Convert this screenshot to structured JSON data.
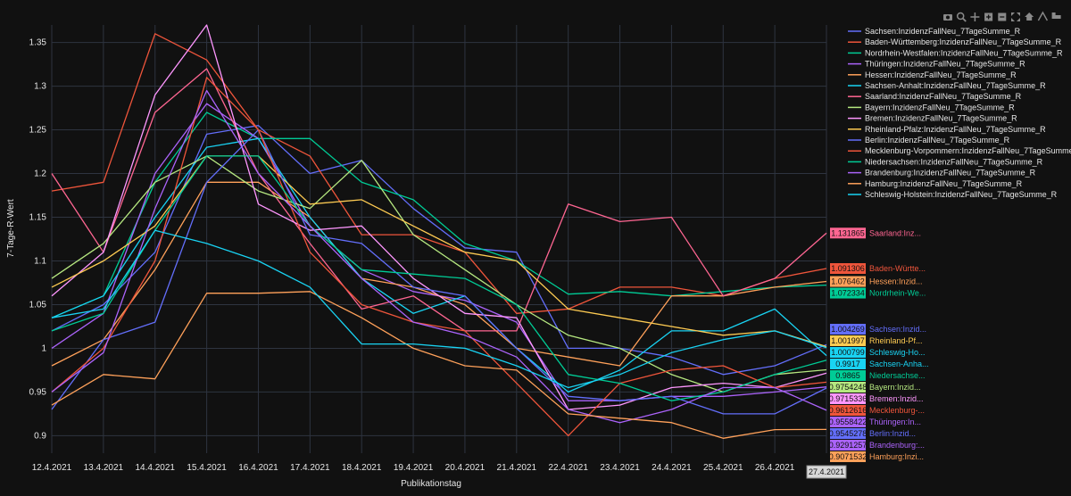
{
  "modebar": {
    "icons": [
      "camera-icon",
      "zoom-icon",
      "pan-icon",
      "zoom-in-icon",
      "zoom-out-icon",
      "autoscale-icon",
      "home-icon",
      "spike-icon",
      "compare-icon"
    ]
  },
  "chart_data": {
    "type": "line",
    "xlabel": "Publikationstag",
    "ylabel": "7-Tage-R-Wert",
    "ylim": [
      0.88,
      1.37
    ],
    "yticks": [
      0.9,
      0.95,
      1,
      1.05,
      1.1,
      1.15,
      1.2,
      1.25,
      1.3,
      1.35
    ],
    "ytick_labels": [
      "0.9",
      "0.95",
      "1",
      "1.05",
      "1.1",
      "1.15",
      "1.2",
      "1.25",
      "1.3",
      "1.35"
    ],
    "x": [
      "12.4.2021",
      "13.4.2021",
      "14.4.2021",
      "15.4.2021",
      "16.4.2021",
      "17.4.2021",
      "18.4.2021",
      "19.4.2021",
      "20.4.2021",
      "21.4.2021",
      "22.4.2021",
      "23.4.2021",
      "24.4.2021",
      "25.4.2021",
      "26.4.2021",
      "27.4.2021"
    ],
    "hover_x_label": "27.4.2021",
    "grid": true,
    "legend_position": "top-right",
    "series": [
      {
        "name": "Sachsen:InzidenzFallNeu_7TageSumme_R",
        "color": "#636efa",
        "values": [
          1.02,
          1.05,
          1.11,
          1.245,
          1.255,
          1.2,
          1.215,
          1.16,
          1.115,
          1.11,
          1.0,
          1.0,
          0.99,
          0.97,
          0.98,
          1.004269
        ],
        "hover_value": "1.004269",
        "hover_name": "Sachsen:Inzid..."
      },
      {
        "name": "Baden-Württemberg:InzidenzFallNeu_7TageSumme_R",
        "color": "#ef553b",
        "values": [
          1.18,
          1.19,
          1.36,
          1.33,
          1.25,
          1.22,
          1.13,
          1.13,
          1.11,
          1.04,
          1.045,
          1.07,
          1.07,
          1.06,
          1.08,
          1.091306
        ],
        "hover_value": "1.091306",
        "hover_name": "Baden-Württe..."
      },
      {
        "name": "Nordrhein-Westfalen:InzidenzFallNeu_7TageSumme_R",
        "color": "#00cc96",
        "values": [
          1.035,
          1.06,
          1.19,
          1.27,
          1.24,
          1.24,
          1.19,
          1.17,
          1.12,
          1.1,
          1.062,
          1.065,
          1.06,
          1.065,
          1.07,
          1.072334
        ],
        "hover_value": "1.072334",
        "hover_name": "Nordrhein-We..."
      },
      {
        "name": "Thüringen:InzidenzFallNeu_7TageSumme_R",
        "color": "#ab63fa",
        "values": [
          1.0,
          1.04,
          1.2,
          1.28,
          1.24,
          1.14,
          1.09,
          1.065,
          1.055,
          1.03,
          0.94,
          0.94,
          0.945,
          0.945,
          0.95,
          0.9558422
        ],
        "hover_value": "0.9558422",
        "hover_name": "Thüringen:In..."
      },
      {
        "name": "Hessen:InzidenzFallNeu_7TageSumme_R",
        "color": "#ffa15a",
        "values": [
          0.98,
          1.01,
          1.09,
          1.19,
          1.19,
          1.15,
          1.08,
          1.07,
          1.05,
          1.0,
          0.99,
          0.98,
          1.06,
          1.06,
          1.07,
          1.076462
        ],
        "hover_value": "1.076462",
        "hover_name": "Hessen:Inzid..."
      },
      {
        "name": "Sachsen-Anhalt:InzidenzFallNeu_7TageSumme_R",
        "color": "#19d3f3",
        "values": [
          1.035,
          1.06,
          1.15,
          1.23,
          1.24,
          1.15,
          1.08,
          1.04,
          1.06,
          1.0,
          0.95,
          0.975,
          1.02,
          1.02,
          1.045,
          0.9917
        ],
        "hover_value": "0.9917",
        "hover_name": "Sachsen-Anha..."
      },
      {
        "name": "Saarland:InzidenzFallNeu_7TageSumme_R",
        "color": "#ff6692",
        "values": [
          1.2,
          1.11,
          1.27,
          1.32,
          1.2,
          1.12,
          1.045,
          1.06,
          1.02,
          1.02,
          1.165,
          1.145,
          1.15,
          1.06,
          1.08,
          1.131865
        ],
        "hover_value": "1.131865",
        "hover_name": "Saarland:Inz..."
      },
      {
        "name": "Bayern:InzidenzFallNeu_7TageSumme_R",
        "color": "#b6e880",
        "values": [
          1.08,
          1.12,
          1.19,
          1.22,
          1.18,
          1.16,
          1.215,
          1.13,
          1.09,
          1.05,
          1.015,
          1.0,
          0.97,
          0.95,
          0.97,
          0.9754248
        ],
        "hover_value": "0.9754248",
        "hover_name": "Bayern:Inzid..."
      },
      {
        "name": "Bremen:InzidenzFallNeu_7TageSumme_R",
        "color": "#ff97ff",
        "values": [
          1.06,
          1.11,
          1.29,
          1.37,
          1.165,
          1.135,
          1.14,
          1.08,
          1.04,
          1.035,
          0.93,
          0.935,
          0.955,
          0.96,
          0.955,
          0.9715336
        ],
        "hover_value": "0.9715336",
        "hover_name": "Bremen:Inzid..."
      },
      {
        "name": "Rheinland-Pfalz:InzidenzFallNeu_7TageSumme_R",
        "color": "#fecb52",
        "values": [
          1.07,
          1.1,
          1.14,
          1.22,
          1.22,
          1.165,
          1.17,
          1.14,
          1.11,
          1.1,
          1.045,
          1.035,
          1.025,
          1.015,
          1.02,
          1.001997
        ],
        "hover_value": "1.001997",
        "hover_name": "Rheinland-Pf..."
      },
      {
        "name": "Berlin:InzidenzFallNeu_7TageSumme_R",
        "color": "#636efa",
        "values": [
          0.93,
          1.01,
          1.03,
          1.19,
          1.25,
          1.13,
          1.12,
          1.07,
          1.06,
          1.0,
          0.945,
          0.94,
          0.945,
          0.925,
          0.925,
          0.9545278
        ],
        "hover_value": "0.9545278",
        "hover_name": "Berlin:Inzid..."
      },
      {
        "name": "Mecklenburg-Vorpommern:InzidenzFallNeu_7TageSumme_R",
        "color": "#ef553b",
        "values": [
          0.95,
          1.0,
          1.1,
          1.31,
          1.25,
          1.11,
          1.05,
          1.03,
          1.02,
          0.96,
          0.9,
          0.96,
          0.975,
          0.98,
          0.955,
          0.9612616
        ],
        "hover_value": "0.9612616",
        "hover_name": "Mecklenburg-..."
      },
      {
        "name": "Niedersachsen:InzidenzFallNeu_7TageSumme_R",
        "color": "#00cc96",
        "values": [
          1.02,
          1.04,
          1.135,
          1.22,
          1.22,
          1.14,
          1.09,
          1.085,
          1.08,
          1.05,
          0.97,
          0.96,
          0.94,
          0.95,
          0.97,
          0.9865
        ],
        "hover_value": "0.9865",
        "hover_name": "Niedersachse..."
      },
      {
        "name": "Brandenburg:InzidenzFallNeu_7TageSumme_R",
        "color": "#ab63fa",
        "values": [
          0.95,
          0.995,
          1.16,
          1.295,
          1.2,
          1.14,
          1.08,
          1.03,
          1.015,
          0.99,
          0.93,
          0.915,
          0.93,
          0.955,
          0.955,
          0.9291257
        ],
        "hover_value": "0.9291257",
        "hover_name": "Brandenburg:..."
      },
      {
        "name": "Hamburg:InzidenzFallNeu_7TageSumme_R",
        "color": "#ffa15a",
        "values": [
          0.935,
          0.97,
          0.965,
          1.063,
          1.063,
          1.065,
          1.035,
          1.0,
          0.98,
          0.975,
          0.925,
          0.92,
          0.915,
          0.897,
          0.907,
          0.9071532
        ],
        "hover_value": "0.9071532",
        "hover_name": "Hamburg:Inzi..."
      },
      {
        "name": "Schleswig-Holstein:InzidenzFallNeu_7TageSumme_R",
        "color": "#19d3f3",
        "values": [
          1.035,
          1.045,
          1.135,
          1.12,
          1.1,
          1.07,
          1.005,
          1.005,
          1.0,
          0.98,
          0.955,
          0.97,
          0.995,
          1.01,
          1.02,
          1.000799
        ],
        "hover_value": "1.000799",
        "hover_name": "Schleswig-Ho..."
      }
    ]
  }
}
